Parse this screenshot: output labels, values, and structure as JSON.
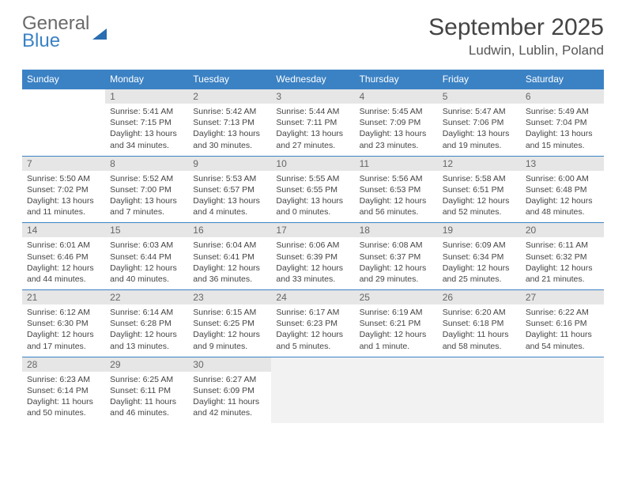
{
  "logo": {
    "line1": "General",
    "line2": "Blue"
  },
  "header": {
    "title": "September 2025",
    "location": "Ludwin, Lublin, Poland"
  },
  "colors": {
    "header_bg": "#3b82c4",
    "header_text": "#ffffff",
    "daynum_bg": "#e6e6e6",
    "daynum_text": "#666666",
    "body_text": "#444444",
    "trailing_bg": "#f2f2f2",
    "rule": "#3b82c4"
  },
  "typography": {
    "title_fontsize": 30,
    "location_fontsize": 17,
    "dayheader_fontsize": 12,
    "daynum_fontsize": 12,
    "body_fontsize": 10.5
  },
  "dayHeaders": [
    "Sunday",
    "Monday",
    "Tuesday",
    "Wednesday",
    "Thursday",
    "Friday",
    "Saturday"
  ],
  "weeks": [
    [
      {
        "blank": true
      },
      {
        "num": "1",
        "sunrise": "Sunrise: 5:41 AM",
        "sunset": "Sunset: 7:15 PM",
        "daylight": "Daylight: 13 hours and 34 minutes."
      },
      {
        "num": "2",
        "sunrise": "Sunrise: 5:42 AM",
        "sunset": "Sunset: 7:13 PM",
        "daylight": "Daylight: 13 hours and 30 minutes."
      },
      {
        "num": "3",
        "sunrise": "Sunrise: 5:44 AM",
        "sunset": "Sunset: 7:11 PM",
        "daylight": "Daylight: 13 hours and 27 minutes."
      },
      {
        "num": "4",
        "sunrise": "Sunrise: 5:45 AM",
        "sunset": "Sunset: 7:09 PM",
        "daylight": "Daylight: 13 hours and 23 minutes."
      },
      {
        "num": "5",
        "sunrise": "Sunrise: 5:47 AM",
        "sunset": "Sunset: 7:06 PM",
        "daylight": "Daylight: 13 hours and 19 minutes."
      },
      {
        "num": "6",
        "sunrise": "Sunrise: 5:49 AM",
        "sunset": "Sunset: 7:04 PM",
        "daylight": "Daylight: 13 hours and 15 minutes."
      }
    ],
    [
      {
        "num": "7",
        "sunrise": "Sunrise: 5:50 AM",
        "sunset": "Sunset: 7:02 PM",
        "daylight": "Daylight: 13 hours and 11 minutes."
      },
      {
        "num": "8",
        "sunrise": "Sunrise: 5:52 AM",
        "sunset": "Sunset: 7:00 PM",
        "daylight": "Daylight: 13 hours and 7 minutes."
      },
      {
        "num": "9",
        "sunrise": "Sunrise: 5:53 AM",
        "sunset": "Sunset: 6:57 PM",
        "daylight": "Daylight: 13 hours and 4 minutes."
      },
      {
        "num": "10",
        "sunrise": "Sunrise: 5:55 AM",
        "sunset": "Sunset: 6:55 PM",
        "daylight": "Daylight: 13 hours and 0 minutes."
      },
      {
        "num": "11",
        "sunrise": "Sunrise: 5:56 AM",
        "sunset": "Sunset: 6:53 PM",
        "daylight": "Daylight: 12 hours and 56 minutes."
      },
      {
        "num": "12",
        "sunrise": "Sunrise: 5:58 AM",
        "sunset": "Sunset: 6:51 PM",
        "daylight": "Daylight: 12 hours and 52 minutes."
      },
      {
        "num": "13",
        "sunrise": "Sunrise: 6:00 AM",
        "sunset": "Sunset: 6:48 PM",
        "daylight": "Daylight: 12 hours and 48 minutes."
      }
    ],
    [
      {
        "num": "14",
        "sunrise": "Sunrise: 6:01 AM",
        "sunset": "Sunset: 6:46 PM",
        "daylight": "Daylight: 12 hours and 44 minutes."
      },
      {
        "num": "15",
        "sunrise": "Sunrise: 6:03 AM",
        "sunset": "Sunset: 6:44 PM",
        "daylight": "Daylight: 12 hours and 40 minutes."
      },
      {
        "num": "16",
        "sunrise": "Sunrise: 6:04 AM",
        "sunset": "Sunset: 6:41 PM",
        "daylight": "Daylight: 12 hours and 36 minutes."
      },
      {
        "num": "17",
        "sunrise": "Sunrise: 6:06 AM",
        "sunset": "Sunset: 6:39 PM",
        "daylight": "Daylight: 12 hours and 33 minutes."
      },
      {
        "num": "18",
        "sunrise": "Sunrise: 6:08 AM",
        "sunset": "Sunset: 6:37 PM",
        "daylight": "Daylight: 12 hours and 29 minutes."
      },
      {
        "num": "19",
        "sunrise": "Sunrise: 6:09 AM",
        "sunset": "Sunset: 6:34 PM",
        "daylight": "Daylight: 12 hours and 25 minutes."
      },
      {
        "num": "20",
        "sunrise": "Sunrise: 6:11 AM",
        "sunset": "Sunset: 6:32 PM",
        "daylight": "Daylight: 12 hours and 21 minutes."
      }
    ],
    [
      {
        "num": "21",
        "sunrise": "Sunrise: 6:12 AM",
        "sunset": "Sunset: 6:30 PM",
        "daylight": "Daylight: 12 hours and 17 minutes."
      },
      {
        "num": "22",
        "sunrise": "Sunrise: 6:14 AM",
        "sunset": "Sunset: 6:28 PM",
        "daylight": "Daylight: 12 hours and 13 minutes."
      },
      {
        "num": "23",
        "sunrise": "Sunrise: 6:15 AM",
        "sunset": "Sunset: 6:25 PM",
        "daylight": "Daylight: 12 hours and 9 minutes."
      },
      {
        "num": "24",
        "sunrise": "Sunrise: 6:17 AM",
        "sunset": "Sunset: 6:23 PM",
        "daylight": "Daylight: 12 hours and 5 minutes."
      },
      {
        "num": "25",
        "sunrise": "Sunrise: 6:19 AM",
        "sunset": "Sunset: 6:21 PM",
        "daylight": "Daylight: 12 hours and 1 minute."
      },
      {
        "num": "26",
        "sunrise": "Sunrise: 6:20 AM",
        "sunset": "Sunset: 6:18 PM",
        "daylight": "Daylight: 11 hours and 58 minutes."
      },
      {
        "num": "27",
        "sunrise": "Sunrise: 6:22 AM",
        "sunset": "Sunset: 6:16 PM",
        "daylight": "Daylight: 11 hours and 54 minutes."
      }
    ],
    [
      {
        "num": "28",
        "sunrise": "Sunrise: 6:23 AM",
        "sunset": "Sunset: 6:14 PM",
        "daylight": "Daylight: 11 hours and 50 minutes."
      },
      {
        "num": "29",
        "sunrise": "Sunrise: 6:25 AM",
        "sunset": "Sunset: 6:11 PM",
        "daylight": "Daylight: 11 hours and 46 minutes."
      },
      {
        "num": "30",
        "sunrise": "Sunrise: 6:27 AM",
        "sunset": "Sunset: 6:09 PM",
        "daylight": "Daylight: 11 hours and 42 minutes."
      },
      {
        "trailing": true
      },
      {
        "trailing": true
      },
      {
        "trailing": true
      },
      {
        "trailing": true
      }
    ]
  ]
}
